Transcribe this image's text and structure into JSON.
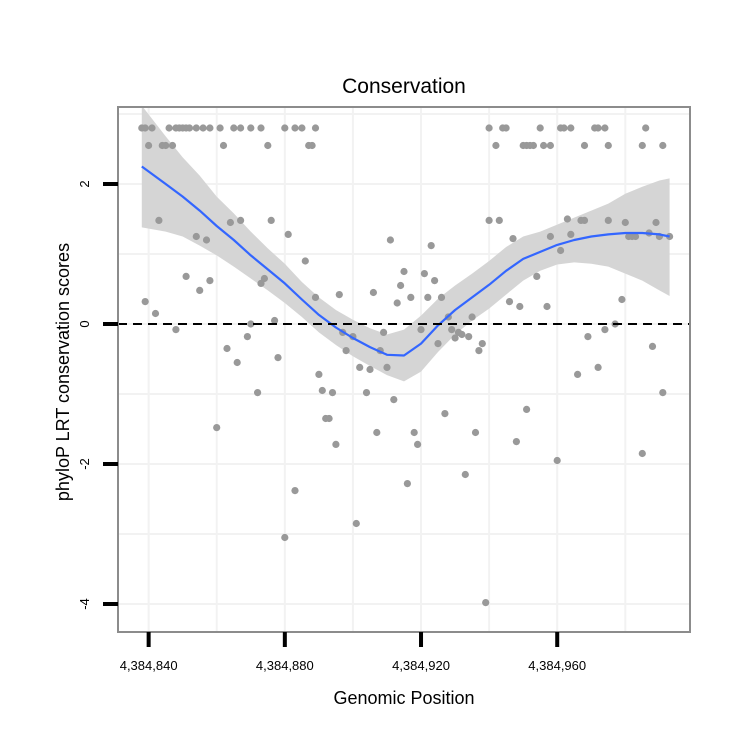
{
  "chart_data": {
    "type": "scatter",
    "title": "Conservation",
    "xlabel": "Genomic Position",
    "ylabel": "phyloP LRT conservation scores",
    "xlim": [
      4384831,
      4384999
    ],
    "ylim": [
      -4.4,
      3.1
    ],
    "x_ticks": [
      4384840,
      4384880,
      4384920,
      4384960
    ],
    "x_tick_labels": [
      "4,384,840",
      "4,384,880",
      "4,384,920",
      "4,384,960"
    ],
    "y_ticks": [
      -4,
      -2,
      0,
      2
    ],
    "y_tick_labels": [
      "-4",
      "-2",
      "0",
      "2"
    ],
    "reference_line": {
      "y": 0,
      "style": "dashed"
    },
    "grid": true,
    "colors": {
      "points": "#999999",
      "smooth": "#3366ff",
      "band": "#d3d3d3",
      "panel_border": "#8c8c8c",
      "grid": "#f2f2f2"
    },
    "points": [
      [
        4384838,
        2.8
      ],
      [
        4384839,
        2.8
      ],
      [
        4384841,
        2.8
      ],
      [
        4384840,
        2.55
      ],
      [
        4384844,
        2.55
      ],
      [
        4384845,
        2.55
      ],
      [
        4384846,
        2.8
      ],
      [
        4384847,
        2.55
      ],
      [
        4384848,
        2.8
      ],
      [
        4384849,
        2.8
      ],
      [
        4384850,
        2.8
      ],
      [
        4384851,
        2.8
      ],
      [
        4384852,
        2.8
      ],
      [
        4384854,
        2.8
      ],
      [
        4384856,
        2.8
      ],
      [
        4384858,
        2.8
      ],
      [
        4384861,
        2.8
      ],
      [
        4384862,
        2.55
      ],
      [
        4384865,
        2.8
      ],
      [
        4384867,
        2.8
      ],
      [
        4384870,
        2.8
      ],
      [
        4384873,
        2.8
      ],
      [
        4384875,
        2.55
      ],
      [
        4384880,
        2.8
      ],
      [
        4384883,
        2.8
      ],
      [
        4384885,
        2.8
      ],
      [
        4384887,
        2.55
      ],
      [
        4384888,
        2.55
      ],
      [
        4384889,
        2.8
      ],
      [
        4384940,
        2.8
      ],
      [
        4384942,
        2.55
      ],
      [
        4384944,
        2.8
      ],
      [
        4384945,
        2.8
      ],
      [
        4384950,
        2.55
      ],
      [
        4384951,
        2.55
      ],
      [
        4384952,
        2.55
      ],
      [
        4384953,
        2.55
      ],
      [
        4384955,
        2.8
      ],
      [
        4384956,
        2.55
      ],
      [
        4384958,
        2.55
      ],
      [
        4384961,
        2.8
      ],
      [
        4384962,
        2.8
      ],
      [
        4384964,
        2.8
      ],
      [
        4384968,
        2.55
      ],
      [
        4384971,
        2.8
      ],
      [
        4384972,
        2.8
      ],
      [
        4384974,
        2.8
      ],
      [
        4384975,
        2.55
      ],
      [
        4384985,
        2.55
      ],
      [
        4384986,
        2.8
      ],
      [
        4384991,
        2.55
      ],
      [
        4384839,
        0.32
      ],
      [
        4384842,
        0.15
      ],
      [
        4384843,
        1.48
      ],
      [
        4384848,
        -0.08
      ],
      [
        4384851,
        0.68
      ],
      [
        4384854,
        1.25
      ],
      [
        4384855,
        0.48
      ],
      [
        4384857,
        1.2
      ],
      [
        4384858,
        0.62
      ],
      [
        4384860,
        -1.48
      ],
      [
        4384863,
        -0.35
      ],
      [
        4384864,
        1.45
      ],
      [
        4384866,
        -0.55
      ],
      [
        4384867,
        1.48
      ],
      [
        4384869,
        -0.18
      ],
      [
        4384870,
        0.0
      ],
      [
        4384872,
        -0.98
      ],
      [
        4384873,
        0.58
      ],
      [
        4384874,
        0.65
      ],
      [
        4384876,
        1.48
      ],
      [
        4384877,
        0.05
      ],
      [
        4384878,
        -0.48
      ],
      [
        4384880,
        -3.05
      ],
      [
        4384881,
        1.28
      ],
      [
        4384883,
        -2.38
      ],
      [
        4384886,
        0.9
      ],
      [
        4384889,
        0.38
      ],
      [
        4384890,
        -0.72
      ],
      [
        4384891,
        -0.95
      ],
      [
        4384892,
        -1.35
      ],
      [
        4384893,
        -1.35
      ],
      [
        4384894,
        -0.98
      ],
      [
        4384895,
        -1.72
      ],
      [
        4384896,
        0.42
      ],
      [
        4384897,
        -0.12
      ],
      [
        4384898,
        -0.38
      ],
      [
        4384900,
        -0.18
      ],
      [
        4384901,
        -2.85
      ],
      [
        4384902,
        -0.62
      ],
      [
        4384904,
        -0.98
      ],
      [
        4384905,
        -0.65
      ],
      [
        4384906,
        0.45
      ],
      [
        4384907,
        -1.55
      ],
      [
        4384908,
        -0.38
      ],
      [
        4384909,
        -0.12
      ],
      [
        4384910,
        -0.62
      ],
      [
        4384911,
        1.2
      ],
      [
        4384912,
        -1.08
      ],
      [
        4384913,
        0.3
      ],
      [
        4384914,
        0.55
      ],
      [
        4384915,
        0.75
      ],
      [
        4384916,
        -2.28
      ],
      [
        4384917,
        0.38
      ],
      [
        4384918,
        -1.55
      ],
      [
        4384919,
        -1.72
      ],
      [
        4384920,
        -0.08
      ],
      [
        4384921,
        0.72
      ],
      [
        4384922,
        0.38
      ],
      [
        4384923,
        1.12
      ],
      [
        4384924,
        0.62
      ],
      [
        4384925,
        -0.28
      ],
      [
        4384926,
        0.38
      ],
      [
        4384927,
        -1.28
      ],
      [
        4384928,
        0.1
      ],
      [
        4384929,
        -0.08
      ],
      [
        4384930,
        -0.2
      ],
      [
        4384931,
        -0.12
      ],
      [
        4384932,
        -0.15
      ],
      [
        4384933,
        -2.15
      ],
      [
        4384934,
        -0.18
      ],
      [
        4384935,
        0.1
      ],
      [
        4384936,
        -1.55
      ],
      [
        4384937,
        -0.38
      ],
      [
        4384938,
        -0.28
      ],
      [
        4384939,
        -3.98
      ],
      [
        4384940,
        1.48
      ],
      [
        4384943,
        1.48
      ],
      [
        4384946,
        0.32
      ],
      [
        4384947,
        1.22
      ],
      [
        4384948,
        -1.68
      ],
      [
        4384949,
        0.25
      ],
      [
        4384951,
        -1.22
      ],
      [
        4384954,
        0.68
      ],
      [
        4384957,
        0.25
      ],
      [
        4384958,
        1.25
      ],
      [
        4384960,
        -1.95
      ],
      [
        4384961,
        1.05
      ],
      [
        4384963,
        1.5
      ],
      [
        4384964,
        1.28
      ],
      [
        4384966,
        -0.72
      ],
      [
        4384967,
        1.48
      ],
      [
        4384968,
        1.48
      ],
      [
        4384969,
        -0.18
      ],
      [
        4384972,
        -0.62
      ],
      [
        4384974,
        -0.08
      ],
      [
        4384975,
        1.48
      ],
      [
        4384977,
        0.0
      ],
      [
        4384979,
        0.35
      ],
      [
        4384980,
        1.45
      ],
      [
        4384981,
        1.25
      ],
      [
        4384982,
        1.25
      ],
      [
        4384983,
        1.25
      ],
      [
        4384985,
        -1.85
      ],
      [
        4384987,
        1.3
      ],
      [
        4384988,
        -0.32
      ],
      [
        4384989,
        1.45
      ],
      [
        4384990,
        1.25
      ],
      [
        4384991,
        -0.98
      ],
      [
        4384993,
        1.25
      ]
    ],
    "smooth": {
      "x": [
        4384838,
        4384845,
        4384850,
        4384855,
        4384860,
        4384865,
        4384870,
        4384875,
        4384880,
        4384885,
        4384890,
        4384895,
        4384900,
        4384905,
        4384910,
        4384915,
        4384920,
        4384925,
        4384930,
        4384935,
        4384940,
        4384945,
        4384950,
        4384955,
        4384960,
        4384965,
        4384970,
        4384975,
        4384980,
        4384985,
        4384990,
        4384993
      ],
      "y": [
        2.25,
        2.0,
        1.82,
        1.62,
        1.4,
        1.2,
        0.98,
        0.78,
        0.58,
        0.35,
        0.13,
        -0.05,
        -0.2,
        -0.33,
        -0.44,
        -0.45,
        -0.28,
        -0.02,
        0.2,
        0.38,
        0.56,
        0.76,
        0.93,
        1.03,
        1.13,
        1.2,
        1.25,
        1.28,
        1.3,
        1.3,
        1.28,
        1.25
      ],
      "lower": [
        1.38,
        1.32,
        1.25,
        1.12,
        0.98,
        0.82,
        0.65,
        0.48,
        0.3,
        0.1,
        -0.12,
        -0.3,
        -0.46,
        -0.6,
        -0.73,
        -0.82,
        -0.68,
        -0.4,
        -0.15,
        0.05,
        0.22,
        0.42,
        0.62,
        0.76,
        0.85,
        0.88,
        0.86,
        0.82,
        0.72,
        0.62,
        0.48,
        0.4
      ],
      "upper": [
        3.12,
        2.68,
        2.38,
        2.12,
        1.82,
        1.58,
        1.32,
        1.08,
        0.86,
        0.6,
        0.38,
        0.2,
        0.06,
        -0.06,
        -0.15,
        -0.08,
        0.12,
        0.36,
        0.55,
        0.72,
        0.9,
        1.1,
        1.25,
        1.32,
        1.42,
        1.52,
        1.62,
        1.72,
        1.86,
        1.96,
        2.05,
        2.08
      ]
    }
  }
}
